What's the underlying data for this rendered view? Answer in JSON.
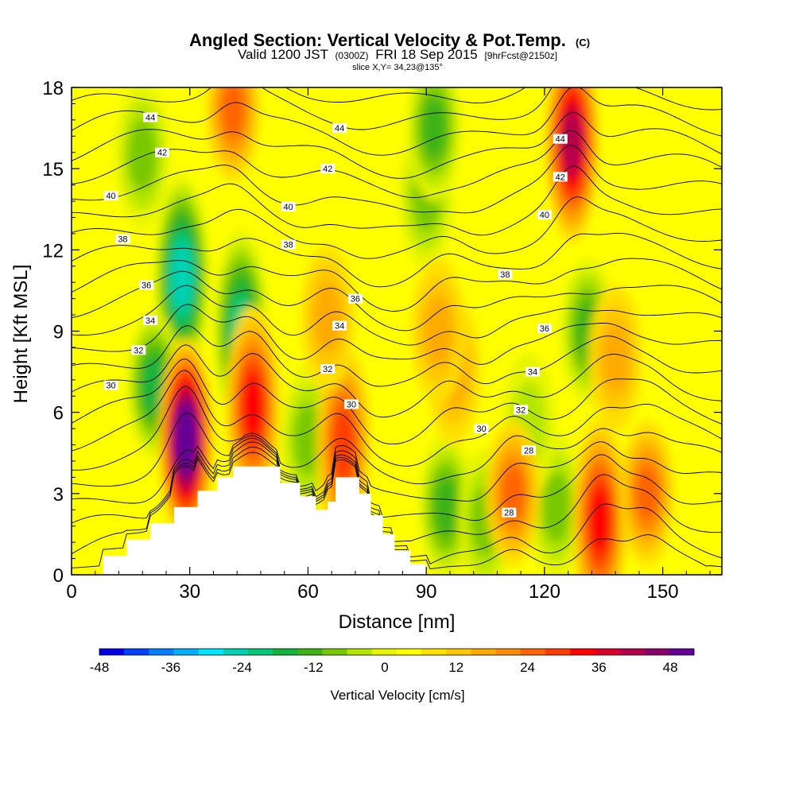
{
  "chart_data": {
    "type": "heatmap",
    "title": "Angled Section: Vertical Velocity & Pot.Temp.",
    "title_suffix": "(C)",
    "subtitle_parts": [
      "Valid 1200 JST",
      "(0300Z)",
      "FRI 18 Sep 2015",
      "[9hrFcst@2150z]"
    ],
    "subtitle2": "slice X,Y= 34,23@135°",
    "xlabel": "Distance [nm]",
    "ylabel": "Height [Kft MSL]",
    "xlim": [
      0,
      165
    ],
    "ylim": [
      0,
      18
    ],
    "x_ticks": [
      "0",
      "30",
      "60",
      "90",
      "120",
      "150"
    ],
    "y_ticks": [
      "0",
      "3",
      "6",
      "9",
      "12",
      "15",
      "18"
    ],
    "colorbar": {
      "label": "Vertical Velocity [cm/s]",
      "range": [
        -48,
        52
      ],
      "step": 4,
      "tick_labels": [
        "-48",
        "-36",
        "-24",
        "-12",
        "0",
        "12",
        "24",
        "36",
        "48"
      ],
      "colors": [
        "#0000e6",
        "#0040ff",
        "#0080ff",
        "#00b0ff",
        "#00e6ff",
        "#00d2b4",
        "#00c878",
        "#14b43c",
        "#3cb414",
        "#78c800",
        "#b4e600",
        "#e6f500",
        "#ffff00",
        "#ffe100",
        "#ffc800",
        "#ffaa00",
        "#ff8c00",
        "#ff6400",
        "#ff3c00",
        "#ff0000",
        "#dc0028",
        "#b4004b",
        "#8c006e",
        "#640096"
      ]
    },
    "terrain_kft": [
      [
        0,
        0
      ],
      [
        8,
        0
      ],
      [
        8,
        0.7
      ],
      [
        14,
        0.7
      ],
      [
        14,
        1.3
      ],
      [
        20,
        1.3
      ],
      [
        20,
        1.9
      ],
      [
        26,
        1.9
      ],
      [
        26,
        2.5
      ],
      [
        32,
        2.5
      ],
      [
        32,
        3.1
      ],
      [
        37,
        3.1
      ],
      [
        37,
        3.6
      ],
      [
        41,
        3.6
      ],
      [
        41,
        4.0
      ],
      [
        53,
        4.0
      ],
      [
        53,
        3.4
      ],
      [
        58,
        3.4
      ],
      [
        58,
        2.9
      ],
      [
        62,
        2.9
      ],
      [
        62,
        2.4
      ],
      [
        65,
        2.4
      ],
      [
        65,
        2.7
      ],
      [
        67,
        2.7
      ],
      [
        67,
        3.6
      ],
      [
        73,
        3.6
      ],
      [
        73,
        3.0
      ],
      [
        76,
        3.0
      ],
      [
        76,
        2.2
      ],
      [
        79,
        2.2
      ],
      [
        79,
        1.5
      ],
      [
        82,
        1.5
      ],
      [
        82,
        0.9
      ],
      [
        86,
        0.9
      ],
      [
        86,
        0.4
      ],
      [
        90,
        0.4
      ],
      [
        90,
        0
      ]
    ],
    "updraft_cores": [
      {
        "x": 29,
        "z": 5.0,
        "w": 48
      },
      {
        "x": 46,
        "z": 6.2,
        "w": 26
      },
      {
        "x": 69,
        "z": 4.8,
        "w": 22
      },
      {
        "x": 127,
        "z": 16.0,
        "w": 36
      },
      {
        "x": 134,
        "z": 2.0,
        "w": 26
      },
      {
        "x": 112,
        "z": 3.0,
        "w": 20
      },
      {
        "x": 97,
        "z": 7.5,
        "w": 13
      },
      {
        "x": 65,
        "z": 9.5,
        "w": 12
      },
      {
        "x": 41,
        "z": 17.2,
        "w": 18
      },
      {
        "x": 93,
        "z": 9.0,
        "w": 10
      },
      {
        "x": 146,
        "z": 3.0,
        "w": 18
      },
      {
        "x": 138,
        "z": 8.0,
        "w": 10
      }
    ],
    "downdraft_cores": [
      {
        "x": 28,
        "z": 11.0,
        "w": -26
      },
      {
        "x": 43,
        "z": 9.0,
        "w": -22
      },
      {
        "x": 21,
        "z": 7.0,
        "w": -18
      },
      {
        "x": 131,
        "z": 9.0,
        "w": -16
      },
      {
        "x": 90,
        "z": 14.0,
        "w": -12
      },
      {
        "x": 92,
        "z": 16.5,
        "w": -14
      },
      {
        "x": 18,
        "z": 15.5,
        "w": -12
      },
      {
        "x": 60,
        "z": 5.0,
        "w": -12
      },
      {
        "x": 95,
        "z": 2.5,
        "w": -14
      },
      {
        "x": 123,
        "z": 2.5,
        "w": -10
      },
      {
        "x": 105,
        "z": 2.0,
        "w": -12
      },
      {
        "x": 116,
        "z": 5.5,
        "w": -8
      }
    ],
    "pot_temp_levels": [
      24,
      25,
      26,
      27,
      28,
      29,
      30,
      31,
      32,
      33,
      34,
      35,
      36,
      37,
      38,
      39,
      40,
      41,
      42,
      43,
      44,
      45,
      46
    ],
    "contour_labels": [
      {
        "text": "44",
        "x": 20,
        "z": 16.9
      },
      {
        "text": "42",
        "x": 23,
        "z": 15.6
      },
      {
        "text": "40",
        "x": 10,
        "z": 14.0
      },
      {
        "text": "38",
        "x": 13,
        "z": 12.4
      },
      {
        "text": "36",
        "x": 19,
        "z": 10.7
      },
      {
        "text": "34",
        "x": 20,
        "z": 9.4
      },
      {
        "text": "32",
        "x": 17,
        "z": 8.3
      },
      {
        "text": "30",
        "x": 10,
        "z": 7.0
      },
      {
        "text": "44",
        "x": 68,
        "z": 16.5
      },
      {
        "text": "42",
        "x": 65,
        "z": 15.0
      },
      {
        "text": "40",
        "x": 55,
        "z": 13.6
      },
      {
        "text": "38",
        "x": 55,
        "z": 12.2
      },
      {
        "text": "36",
        "x": 72,
        "z": 10.2
      },
      {
        "text": "34",
        "x": 68,
        "z": 9.2
      },
      {
        "text": "32",
        "x": 65,
        "z": 7.6
      },
      {
        "text": "30",
        "x": 71,
        "z": 6.3
      },
      {
        "text": "44",
        "x": 124,
        "z": 16.1
      },
      {
        "text": "42",
        "x": 124,
        "z": 14.7
      },
      {
        "text": "40",
        "x": 120,
        "z": 13.3
      },
      {
        "text": "38",
        "x": 110,
        "z": 11.1
      },
      {
        "text": "36",
        "x": 120,
        "z": 9.1
      },
      {
        "text": "34",
        "x": 117,
        "z": 7.5
      },
      {
        "text": "32",
        "x": 114,
        "z": 6.1
      },
      {
        "text": "30",
        "x": 104,
        "z": 5.4
      },
      {
        "text": "28",
        "x": 116,
        "z": 4.6
      },
      {
        "text": "28",
        "x": 111,
        "z": 2.3
      }
    ]
  }
}
